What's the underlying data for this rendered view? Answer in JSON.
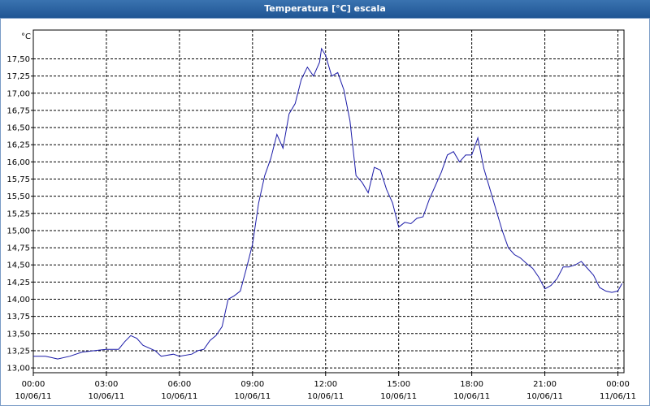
{
  "window": {
    "title": "Temperatura [°C] escala"
  },
  "chart_data": {
    "type": "line",
    "y_unit": "°C",
    "x": [
      0,
      0.5,
      0.75,
      1,
      1.5,
      2,
      2.5,
      3,
      3.5,
      3.75,
      4,
      4.25,
      4.5,
      5,
      5.25,
      5.75,
      6,
      6.5,
      6.75,
      7,
      7.25,
      7.5,
      7.75,
      8,
      8.25,
      8.5,
      8.75,
      9,
      9.25,
      9.5,
      9.75,
      10,
      10.25,
      10.5,
      10.75,
      11,
      11.25,
      11.5,
      11.75,
      11.83,
      12,
      12.25,
      12.5,
      12.75,
      13,
      13.25,
      13.5,
      13.75,
      14,
      14.25,
      14.5,
      14.75,
      15,
      15.25,
      15.5,
      15.75,
      16,
      16.25,
      16.5,
      16.75,
      17,
      17.25,
      17.5,
      17.75,
      18,
      18.25,
      18.5,
      18.75,
      19,
      19.25,
      19.5,
      19.75,
      20,
      20.25,
      20.5,
      20.75,
      21,
      21.25,
      21.5,
      21.75,
      22,
      22.25,
      22.5,
      22.75,
      23,
      23.25,
      23.5,
      23.75,
      24,
      24.17
    ],
    "series": [
      {
        "name": "Temperatura",
        "color": "#1c1ca8",
        "values": [
          13.17,
          13.17,
          13.15,
          13.13,
          13.17,
          13.23,
          13.25,
          13.27,
          13.27,
          13.38,
          13.47,
          13.43,
          13.33,
          13.25,
          13.17,
          13.2,
          13.17,
          13.2,
          13.25,
          13.27,
          13.4,
          13.47,
          13.6,
          14.0,
          14.05,
          14.12,
          14.45,
          14.8,
          15.4,
          15.8,
          16.05,
          16.4,
          16.2,
          16.7,
          16.85,
          17.2,
          17.38,
          17.25,
          17.45,
          17.65,
          17.55,
          17.25,
          17.3,
          17.05,
          16.6,
          15.8,
          15.7,
          15.55,
          15.92,
          15.88,
          15.6,
          15.4,
          15.05,
          15.12,
          15.1,
          15.18,
          15.2,
          15.45,
          15.65,
          15.85,
          16.1,
          16.15,
          16.0,
          16.1,
          16.1,
          16.35,
          15.9,
          15.6,
          15.3,
          15.0,
          14.75,
          14.65,
          14.6,
          14.52,
          14.45,
          14.32,
          14.15,
          14.2,
          14.3,
          14.47,
          14.47,
          14.5,
          14.55,
          14.45,
          14.35,
          14.17,
          14.12,
          14.1,
          14.12,
          14.23
        ]
      }
    ],
    "xlim": [
      0,
      24.25
    ],
    "ylim": [
      12.93,
      17.92
    ],
    "xticks": [
      {
        "value": 0,
        "label": [
          "00:00",
          "10/06/11"
        ]
      },
      {
        "value": 3,
        "label": [
          "03:00",
          "10/06/11"
        ]
      },
      {
        "value": 6,
        "label": [
          "06:00",
          "10/06/11"
        ]
      },
      {
        "value": 9,
        "label": [
          "09:00",
          "10/06/11"
        ]
      },
      {
        "value": 12,
        "label": [
          "12:00",
          "10/06/11"
        ]
      },
      {
        "value": 15,
        "label": [
          "15:00",
          "10/06/11"
        ]
      },
      {
        "value": 18,
        "label": [
          "18:00",
          "10/06/11"
        ]
      },
      {
        "value": 21,
        "label": [
          "21:00",
          "10/06/11"
        ]
      },
      {
        "value": 24,
        "label": [
          "00:00",
          "11/06/11"
        ]
      }
    ],
    "yticks": [
      {
        "value": 13,
        "label": "13,00"
      },
      {
        "value": 13.25,
        "label": "13,25"
      },
      {
        "value": 13.5,
        "label": "13,50"
      },
      {
        "value": 13.75,
        "label": "13,75"
      },
      {
        "value": 14,
        "label": "14,00"
      },
      {
        "value": 14.25,
        "label": "14,25"
      },
      {
        "value": 14.5,
        "label": "14,50"
      },
      {
        "value": 14.75,
        "label": "14,75"
      },
      {
        "value": 15,
        "label": "15,00"
      },
      {
        "value": 15.25,
        "label": "15,25"
      },
      {
        "value": 15.5,
        "label": "15,50"
      },
      {
        "value": 15.75,
        "label": "15,75"
      },
      {
        "value": 16,
        "label": "16,00"
      },
      {
        "value": 16.25,
        "label": "16,25"
      },
      {
        "value": 16.5,
        "label": "16,50"
      },
      {
        "value": 16.75,
        "label": "16,75"
      },
      {
        "value": 17,
        "label": "17,00"
      },
      {
        "value": 17.25,
        "label": "17,25"
      },
      {
        "value": 17.5,
        "label": "17,50"
      }
    ],
    "grid": true
  }
}
